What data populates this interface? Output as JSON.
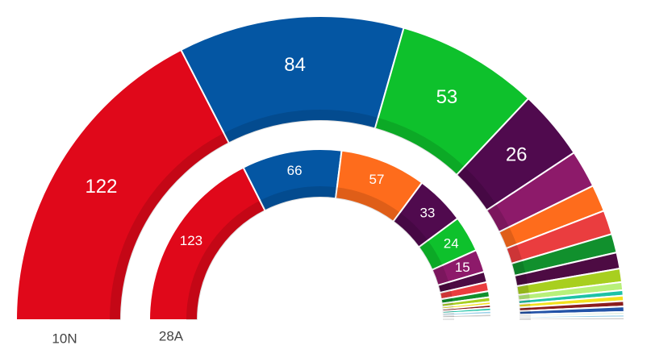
{
  "chart_data": {
    "type": "parliament",
    "series": [
      {
        "name": "10N",
        "values": [
          122,
          84,
          53,
          26,
          14,
          10,
          9,
          7,
          6,
          5,
          3,
          2,
          2,
          2,
          2,
          1,
          1,
          1
        ],
        "colors": [
          "#e0081a",
          "#0456a3",
          "#0ec12c",
          "#500a4e",
          "#8d1a6a",
          "#fe6c1c",
          "#ea3d3f",
          "#11902d",
          "#4d0b43",
          "#a8cf1f",
          "#b8f07a",
          "#1ec2a6",
          "#f3e11e",
          "#8b1d1d",
          "#2353a7",
          "#ddeedd",
          "#9bd0e8",
          "#cccccc"
        ]
      },
      {
        "name": "28A",
        "values": [
          123,
          66,
          57,
          33,
          24,
          15,
          7,
          6,
          4,
          3,
          2,
          2,
          2,
          2,
          2,
          1,
          1
        ],
        "colors": [
          "#e0081a",
          "#0456a3",
          "#fe6c1c",
          "#500a4e",
          "#0ec12c",
          "#8d1a6a",
          "#4d0b43",
          "#ea3d3f",
          "#11902d",
          "#a8cf1f",
          "#f3e11e",
          "#8b1d1d",
          "#1ec2a6",
          "#9bd0e8",
          "#cccccc",
          "#2353a7",
          "#5fd3e6"
        ]
      }
    ]
  }
}
